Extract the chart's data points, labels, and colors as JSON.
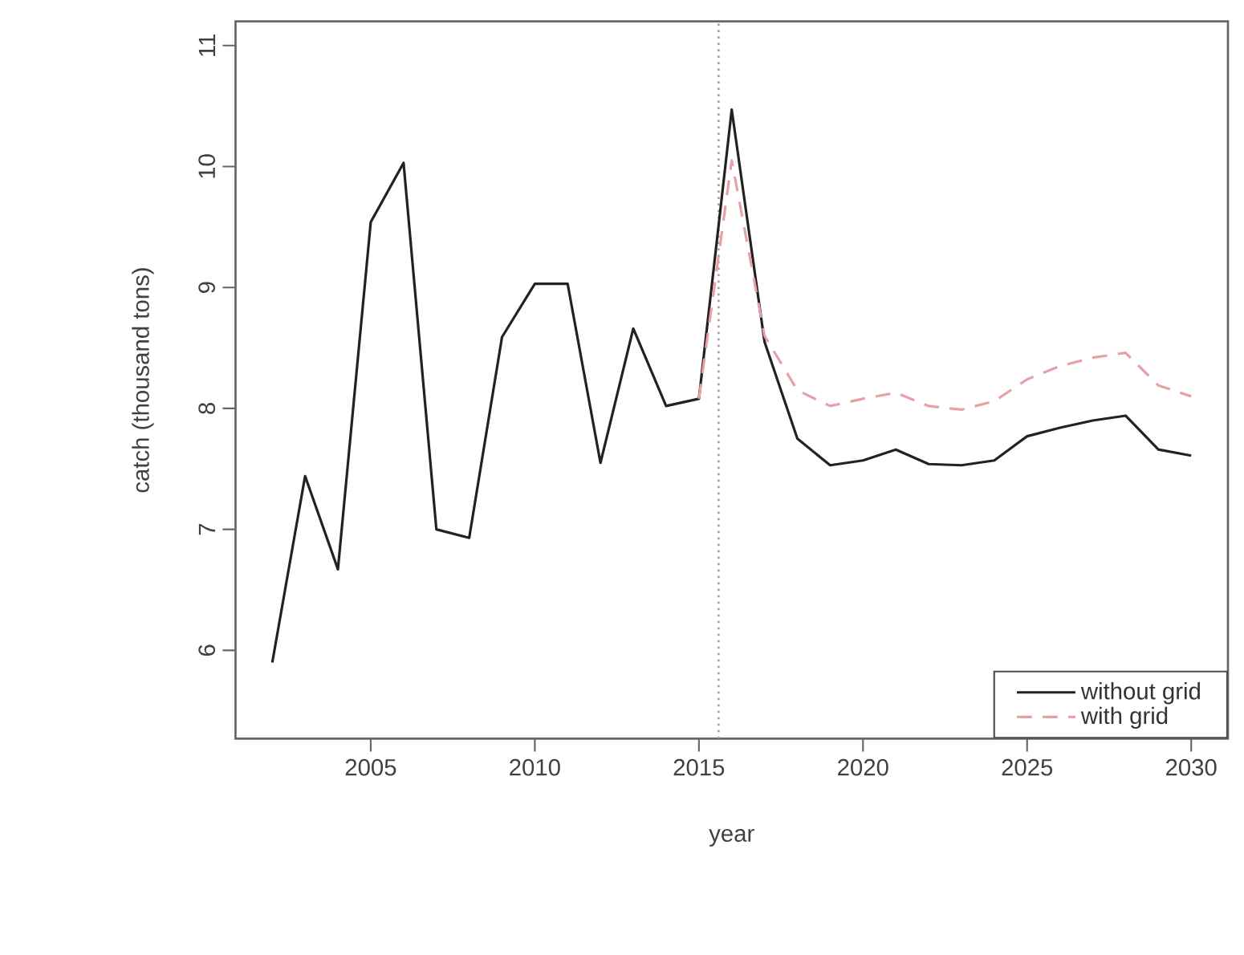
{
  "chart_data": {
    "type": "line",
    "xlabel": "year",
    "ylabel": "catch (thousand tons)",
    "xlim": [
      2000.88,
      2031.12
    ],
    "ylim": [
      5.27,
      11.2
    ],
    "xticks": [
      2005,
      2010,
      2015,
      2020,
      2025,
      2030
    ],
    "yticks": [
      6,
      7,
      8,
      9,
      10,
      11
    ],
    "grid": false,
    "legend": "bottom right",
    "marker": "none",
    "ref_lines": [
      {
        "axis": "x",
        "value": 2015.6,
        "color": "#b09aa0",
        "line_style": "dotted"
      }
    ],
    "series": [
      {
        "name": "without grid",
        "color": "#222222",
        "line_style": "solid",
        "x": [
          2002,
          2003,
          2004,
          2005,
          2006,
          2007,
          2008,
          2009,
          2010,
          2011,
          2012,
          2013,
          2014,
          2015,
          2016,
          2017,
          2018,
          2019,
          2020,
          2021,
          2022,
          2023,
          2024,
          2025,
          2026,
          2027,
          2028,
          2029,
          2030
        ],
        "values": [
          5.9,
          7.44,
          6.67,
          9.54,
          10.03,
          7.0,
          6.93,
          8.59,
          9.03,
          9.03,
          7.55,
          8.66,
          8.02,
          8.08,
          10.47,
          8.55,
          7.75,
          7.53,
          7.57,
          7.66,
          7.54,
          7.53,
          7.57,
          7.77,
          7.84,
          7.9,
          7.94,
          7.66,
          7.61
        ]
      },
      {
        "name": "with grid",
        "color": "#e8a0a8",
        "line_style": "dashed",
        "x": [
          2015,
          2016,
          2017,
          2018,
          2019,
          2020,
          2021,
          2022,
          2023,
          2024,
          2025,
          2026,
          2027,
          2028,
          2029,
          2030
        ],
        "values": [
          8.08,
          10.05,
          8.6,
          8.15,
          8.02,
          8.08,
          8.13,
          8.02,
          7.99,
          8.06,
          8.24,
          8.35,
          8.42,
          8.46,
          8.19,
          8.1
        ]
      }
    ]
  }
}
